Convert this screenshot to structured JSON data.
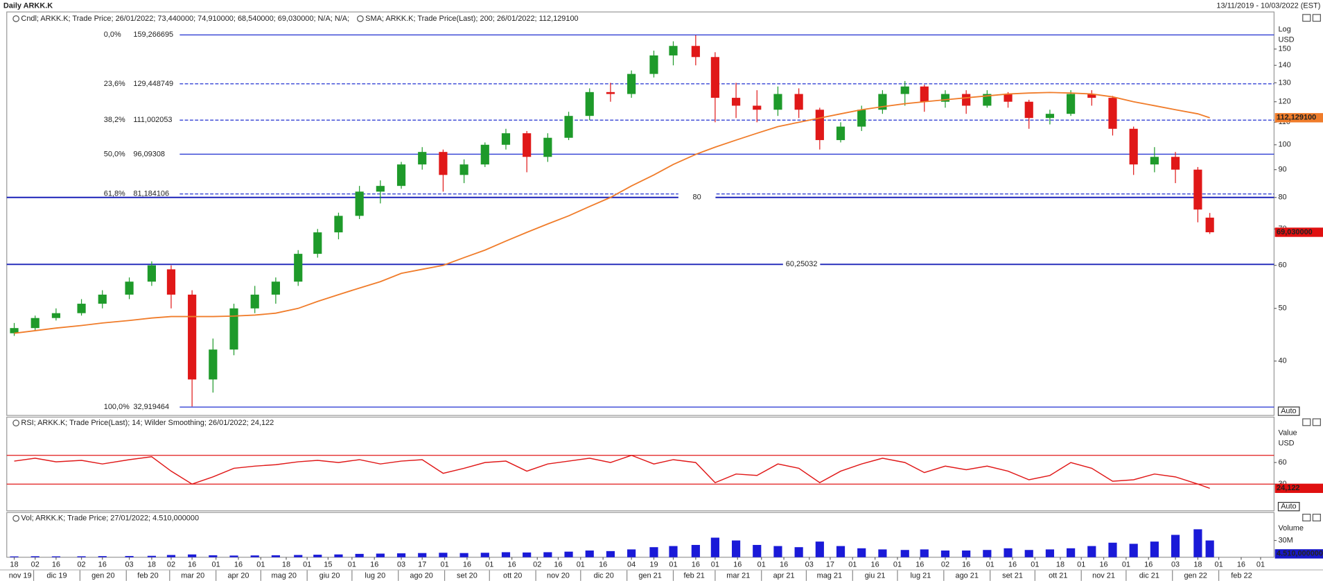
{
  "chart_data": [
    {
      "type": "candlestick",
      "title": "Daily ARKK.K",
      "date_range": "13/11/2019 - 10/03/2022 (EST)",
      "legend": "Cndl; ARKK.K; Trade Price; 26/01/2022; 73,440000; 74,910000; 68,540000; 69,030000; N/A; N/A;",
      "up_color": "#1e9a2a",
      "down_color": "#e01818",
      "log_scale": true,
      "axis_labels": [
        "Log",
        "USD"
      ],
      "scale_mode": "Auto",
      "xlim": [
        "2019-11-13",
        "2022-03-10"
      ],
      "ylim": [
        32,
        164
      ],
      "yticks": [
        40,
        50,
        60,
        70,
        80,
        90,
        100,
        110,
        120,
        130,
        140,
        150
      ],
      "x": [
        "2019-11-18",
        "2019-12-02",
        "2019-12-16",
        "2020-01-02",
        "2020-01-16",
        "2020-02-03",
        "2020-02-18",
        "2020-03-02",
        "2020-03-16",
        "2020-03-30",
        "2020-04-13",
        "2020-04-27",
        "2020-05-11",
        "2020-05-26",
        "2020-06-08",
        "2020-06-22",
        "2020-07-06",
        "2020-07-20",
        "2020-08-03",
        "2020-08-17",
        "2020-08-31",
        "2020-09-14",
        "2020-09-28",
        "2020-10-12",
        "2020-10-26",
        "2020-11-09",
        "2020-11-23",
        "2020-12-07",
        "2020-12-21",
        "2021-01-04",
        "2021-01-19",
        "2021-02-01",
        "2021-02-16",
        "2021-03-01",
        "2021-03-15",
        "2021-03-29",
        "2021-04-12",
        "2021-04-26",
        "2021-05-10",
        "2021-05-24",
        "2021-06-07",
        "2021-06-21",
        "2021-07-06",
        "2021-07-19",
        "2021-08-02",
        "2021-08-16",
        "2021-08-30",
        "2021-09-13",
        "2021-09-27",
        "2021-10-11",
        "2021-10-25",
        "2021-11-08",
        "2021-11-22",
        "2021-12-06",
        "2021-12-20",
        "2022-01-03",
        "2022-01-18",
        "2022-01-26"
      ],
      "open": [
        45,
        46,
        48,
        49,
        51,
        53,
        56,
        59,
        53,
        37,
        42,
        50,
        53,
        56,
        63,
        69,
        74,
        82,
        84,
        92,
        97,
        88,
        92,
        100,
        105,
        95,
        103,
        113,
        125,
        124,
        135,
        146,
        152,
        145,
        122,
        118,
        116,
        124,
        116,
        102,
        108,
        116,
        124,
        128,
        120,
        124,
        118,
        124,
        120,
        112,
        114,
        124,
        122,
        107,
        92,
        95,
        90,
        73.44
      ],
      "high": [
        47,
        48.5,
        50,
        52,
        54,
        57,
        61,
        60,
        54,
        44,
        51,
        55,
        57,
        64,
        70,
        75,
        84,
        86,
        93,
        99,
        98,
        94,
        101,
        107,
        106,
        105,
        115,
        127,
        130,
        137,
        149,
        155,
        159,
        148,
        130,
        126,
        128,
        127,
        117,
        110,
        118,
        126,
        131,
        129,
        126,
        126,
        126,
        125,
        121,
        116,
        126,
        126,
        123,
        108,
        99,
        97,
        91,
        74.91
      ],
      "low": [
        44.5,
        45.5,
        47.5,
        48.5,
        50,
        52,
        55,
        50,
        33,
        35,
        41,
        49,
        51,
        55,
        62,
        67,
        73,
        78,
        83,
        90,
        82,
        85,
        91,
        98,
        89,
        93,
        102,
        111,
        120,
        122,
        133,
        140,
        140,
        110,
        112,
        110,
        113,
        112,
        98,
        101,
        106,
        114,
        118,
        115,
        117,
        114,
        117,
        117,
        107,
        109,
        113,
        118,
        104,
        88,
        89,
        85,
        72,
        68.54
      ],
      "close": [
        46,
        48,
        49,
        51,
        53,
        56,
        60,
        53,
        37,
        42,
        50,
        53,
        56,
        63,
        69,
        74,
        82,
        84,
        92,
        97,
        88,
        92,
        100,
        105,
        95,
        103,
        113,
        125,
        124,
        135,
        146,
        152,
        145,
        122,
        118,
        116,
        124,
        116,
        102,
        108,
        116,
        124,
        128,
        120,
        124,
        118,
        124,
        120,
        112,
        114,
        124,
        122,
        107,
        92,
        95,
        90,
        76,
        69.03
      ],
      "last_label": "69,030000",
      "sma": {
        "name": "SMA; ARKK.K; Trade Price(Last);  200; 26/01/2022; 112,129100",
        "color": "#f07c2a",
        "values": [
          45,
          45.5,
          46,
          46.5,
          47,
          47.5,
          48,
          48.3,
          48.3,
          48.3,
          48.4,
          48.6,
          49,
          50,
          51.5,
          53,
          54.5,
          56,
          58,
          59,
          60,
          62,
          64,
          66.5,
          69,
          71.5,
          74,
          77,
          80,
          84,
          88,
          92,
          96,
          99,
          102,
          105,
          108,
          110,
          112,
          114,
          116,
          117.5,
          119,
          120,
          121,
          122,
          123,
          124,
          124.5,
          124.8,
          124.5,
          124,
          122.5,
          120,
          118,
          116,
          114,
          112.1291
        ],
        "end_label": "112,129100"
      },
      "fib_levels": [
        {
          "percent": "0,0%",
          "value": 159.266695,
          "value_label": "159,266695",
          "dashed": false
        },
        {
          "percent": "23,6%",
          "value": 129.448749,
          "value_label": "129,448749",
          "dashed": true
        },
        {
          "percent": "38,2%",
          "value": 111.002053,
          "value_label": "111,002053",
          "dashed": true
        },
        {
          "percent": "50,0%",
          "value": 96.09308,
          "value_label": "96,09308",
          "dashed": false
        },
        {
          "percent": "61,8%",
          "value": 81.184106,
          "value_label": "81,184106",
          "dashed": true
        },
        {
          "percent": "100,0%",
          "value": 32.919464,
          "value_label": "32,919464",
          "dashed": false
        }
      ],
      "fib_color": "#1f2fd0",
      "hlines": [
        {
          "value": 80
        },
        {
          "value": 60.25032,
          "value_label": "60,25032"
        }
      ],
      "xticks": [
        {
          "value": "2019-11-18",
          "label": "18"
        },
        {
          "value": "2019-12-02",
          "label": "02"
        },
        {
          "value": "2019-12-16",
          "label": "16"
        },
        {
          "value": "2020-01-02",
          "label": "02"
        },
        {
          "value": "2020-01-16",
          "label": "16"
        },
        {
          "value": "2020-02-03",
          "label": "03"
        },
        {
          "value": "2020-02-18",
          "label": "18"
        },
        {
          "value": "2020-03-02",
          "label": "02"
        },
        {
          "value": "2020-03-16",
          "label": "16"
        },
        {
          "value": "2020-04-01",
          "label": "01"
        },
        {
          "value": "2020-04-16",
          "label": "16"
        },
        {
          "value": "2020-05-01",
          "label": "01"
        },
        {
          "value": "2020-05-18",
          "label": "18"
        },
        {
          "value": "2020-06-01",
          "label": "01"
        },
        {
          "value": "2020-06-15",
          "label": "15"
        },
        {
          "value": "2020-07-01",
          "label": "01"
        },
        {
          "value": "2020-07-16",
          "label": "16"
        },
        {
          "value": "2020-08-03",
          "label": "03"
        },
        {
          "value": "2020-08-17",
          "label": "17"
        },
        {
          "value": "2020-09-01",
          "label": "01"
        },
        {
          "value": "2020-09-16",
          "label": "16"
        },
        {
          "value": "2020-10-01",
          "label": "01"
        },
        {
          "value": "2020-10-16",
          "label": "16"
        },
        {
          "value": "2020-11-02",
          "label": "02"
        },
        {
          "value": "2020-11-16",
          "label": "16"
        },
        {
          "value": "2020-12-01",
          "label": "01"
        },
        {
          "value": "2020-12-16",
          "label": "16"
        },
        {
          "value": "2021-01-04",
          "label": "04"
        },
        {
          "value": "2021-01-19",
          "label": "19"
        },
        {
          "value": "2021-02-01",
          "label": "01"
        },
        {
          "value": "2021-02-16",
          "label": "16"
        },
        {
          "value": "2021-03-01",
          "label": "01"
        },
        {
          "value": "2021-03-16",
          "label": "16"
        },
        {
          "value": "2021-04-01",
          "label": "01"
        },
        {
          "value": "2021-04-16",
          "label": "16"
        },
        {
          "value": "2021-05-03",
          "label": "03"
        },
        {
          "value": "2021-05-17",
          "label": "17"
        },
        {
          "value": "2021-06-01",
          "label": "01"
        },
        {
          "value": "2021-06-16",
          "label": "16"
        },
        {
          "value": "2021-07-01",
          "label": "01"
        },
        {
          "value": "2021-07-16",
          "label": "16"
        },
        {
          "value": "2021-08-02",
          "label": "02"
        },
        {
          "value": "2021-08-16",
          "label": "16"
        },
        {
          "value": "2021-09-01",
          "label": "01"
        },
        {
          "value": "2021-09-16",
          "label": "16"
        },
        {
          "value": "2021-10-01",
          "label": "01"
        },
        {
          "value": "2021-10-18",
          "label": "18"
        },
        {
          "value": "2021-11-01",
          "label": "01"
        },
        {
          "value": "2021-11-16",
          "label": "16"
        },
        {
          "value": "2021-12-01",
          "label": "01"
        },
        {
          "value": "2021-12-16",
          "label": "16"
        },
        {
          "value": "2022-01-03",
          "label": "03"
        },
        {
          "value": "2022-01-18",
          "label": "18"
        },
        {
          "value": "2022-02-01",
          "label": "01"
        },
        {
          "value": "2022-02-16",
          "label": "16"
        },
        {
          "value": "2022-03-01",
          "label": "01"
        }
      ],
      "month_ticks": [
        {
          "value": "2019-11-01",
          "label": "nov 19"
        },
        {
          "value": "2019-12-01",
          "label": "dic 19"
        },
        {
          "value": "2020-01-01",
          "label": "gen 20"
        },
        {
          "value": "2020-02-01",
          "label": "feb 20"
        },
        {
          "value": "2020-03-01",
          "label": "mar 20"
        },
        {
          "value": "2020-04-01",
          "label": "apr 20"
        },
        {
          "value": "2020-05-01",
          "label": "mag 20"
        },
        {
          "value": "2020-06-01",
          "label": "giu 20"
        },
        {
          "value": "2020-07-01",
          "label": "lug 20"
        },
        {
          "value": "2020-08-01",
          "label": "ago 20"
        },
        {
          "value": "2020-09-01",
          "label": "set 20"
        },
        {
          "value": "2020-10-01",
          "label": "ott 20"
        },
        {
          "value": "2020-11-01",
          "label": "nov 20"
        },
        {
          "value": "2020-12-01",
          "label": "dic 20"
        },
        {
          "value": "2021-01-01",
          "label": "gen 21"
        },
        {
          "value": "2021-02-01",
          "label": "feb 21"
        },
        {
          "value": "2021-03-01",
          "label": "mar 21"
        },
        {
          "value": "2021-04-01",
          "label": "apr 21"
        },
        {
          "value": "2021-05-01",
          "label": "mag 21"
        },
        {
          "value": "2021-06-01",
          "label": "giu 21"
        },
        {
          "value": "2021-07-01",
          "label": "lug 21"
        },
        {
          "value": "2021-08-01",
          "label": "ago 21"
        },
        {
          "value": "2021-09-01",
          "label": "set 21"
        },
        {
          "value": "2021-10-01",
          "label": "ott 21"
        },
        {
          "value": "2021-11-01",
          "label": "nov 21"
        },
        {
          "value": "2021-12-01",
          "label": "dic 21"
        },
        {
          "value": "2022-01-01",
          "label": "gen 22"
        },
        {
          "value": "2022-02-01",
          "label": "feb 22"
        }
      ]
    },
    {
      "type": "line",
      "legend": "RSI; ARKK.K; Trade Price(Last);  14; Wilder Smoothing; 26/01/2022; 24,122",
      "color": "#e01818",
      "axis_labels": [
        "Value",
        "USD"
      ],
      "scale_mode": "Auto",
      "ylim": [
        -6,
        122
      ],
      "yticks": [
        60,
        30
      ],
      "levels": [
        70,
        30
      ],
      "values": [
        62,
        66,
        61,
        63,
        58,
        64,
        68,
        48,
        30,
        40,
        52,
        55,
        57,
        61,
        63,
        60,
        64,
        58,
        62,
        64,
        45,
        52,
        60,
        62,
        48,
        58,
        62,
        66,
        60,
        70,
        58,
        64,
        60,
        32,
        44,
        42,
        58,
        52,
        32,
        48,
        58,
        66,
        60,
        46,
        55,
        50,
        55,
        48,
        36,
        42,
        60,
        52,
        34,
        36,
        44,
        40,
        30,
        24.122
      ],
      "last_label": "24,122"
    },
    {
      "type": "bar",
      "legend": "Vol; ARKK.K; Trade Price;  27/01/2022; 4.510,000000",
      "color": "#1a1ad8",
      "axis_labels": [
        "Volume"
      ],
      "ylim": [
        0,
        80000000
      ],
      "yticks": [
        {
          "value": 30000000,
          "label": "30M"
        }
      ],
      "values": [
        1500000,
        1800000,
        1600000,
        1700000,
        2000000,
        2200000,
        2500000,
        4000000,
        5000000,
        3500000,
        3000000,
        3200000,
        3500000,
        4000000,
        4500000,
        5000000,
        6000000,
        6500000,
        7000000,
        7500000,
        8000000,
        7500000,
        8000000,
        9000000,
        8500000,
        9000000,
        10000000,
        12000000,
        11000000,
        14000000,
        18000000,
        20000000,
        22000000,
        35000000,
        30000000,
        22000000,
        20000000,
        18000000,
        28000000,
        20000000,
        16000000,
        14000000,
        13000000,
        14000000,
        12000000,
        12000000,
        13000000,
        16000000,
        13000000,
        14000000,
        16000000,
        20000000,
        26000000,
        24000000,
        28000000,
        40000000,
        50000000,
        30000000
      ],
      "last_label": "4.510,000000"
    }
  ]
}
